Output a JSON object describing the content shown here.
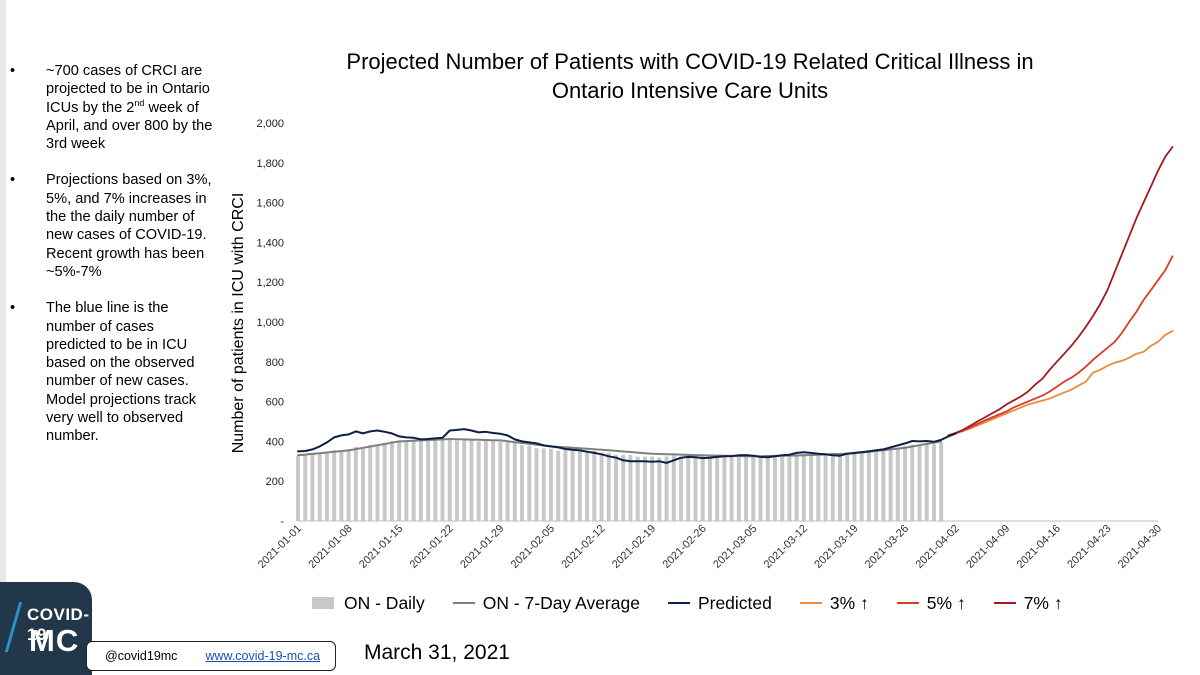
{
  "bullets": [
    {
      "before_sup": "~700 cases of CRCI are projected to be in Ontario ICUs by the 2",
      "sup": "nd",
      "after_sup": " week of April, and over 800 by the 3rd week"
    },
    {
      "text": "Projections based on 3%, 5%, and 7% increases in the the daily number of new cases of COVID-19. Recent growth has been ~5%-7%"
    },
    {
      "text": "The blue line is the number of cases predicted to be in ICU based on the observed number of new cases. Model projections track very well to observed number."
    }
  ],
  "bullet_glyph": "•",
  "chart_data": {
    "type": "bar+line",
    "title_line1": "Projected Number of Patients with COVID-19 Related Critical Illness in",
    "title_line2": "Ontario Intensive Care Units",
    "ylabel": "Number of patients in ICU with CRCI",
    "xlabel": "",
    "ylim": [
      0,
      2000
    ],
    "y_ticks": [
      0,
      200,
      400,
      600,
      800,
      1000,
      1200,
      1400,
      1600,
      1800,
      2000
    ],
    "y_tick_labels": [
      "-",
      "200",
      "400",
      "600",
      "800",
      "1,000",
      "1,200",
      "1,400",
      "1,600",
      "1,800",
      "2,000"
    ],
    "x_start": "2021-01-01",
    "x_end": "2021-04-30",
    "x_tick_labels": [
      "2021-01-01",
      "2021-01-08",
      "2021-01-15",
      "2021-01-22",
      "2021-01-29",
      "2021-02-05",
      "2021-02-12",
      "2021-02-19",
      "2021-02-26",
      "2021-03-05",
      "2021-03-12",
      "2021-03-19",
      "2021-03-26",
      "2021-04-02",
      "2021-04-09",
      "2021-04-16",
      "2021-04-23",
      "2021-04-30"
    ],
    "x_tick_days": [
      0,
      7,
      14,
      21,
      28,
      35,
      42,
      49,
      56,
      63,
      70,
      77,
      84,
      91,
      98,
      105,
      112,
      119
    ],
    "series": [
      {
        "name": "ON - Daily",
        "kind": "bar",
        "color": "#c8c8c8",
        "start_day": 0,
        "anchor_days": [
          0,
          7,
          14,
          21,
          28,
          35,
          42,
          49,
          56,
          63,
          70,
          77,
          84,
          89
        ],
        "anchor_values": [
          330,
          360,
          405,
          410,
          400,
          360,
          345,
          320,
          330,
          325,
          330,
          345,
          375,
          395
        ]
      },
      {
        "name": "ON - 7-Day Average",
        "kind": "line",
        "color": "#7f7f7f",
        "start_day": 0,
        "anchor_days": [
          0,
          7,
          14,
          21,
          28,
          35,
          42,
          49,
          56,
          63,
          70,
          77,
          84,
          89
        ],
        "anchor_values": [
          330,
          355,
          400,
          412,
          405,
          375,
          358,
          338,
          330,
          325,
          330,
          340,
          368,
          400
        ]
      },
      {
        "name": "Predicted",
        "kind": "line",
        "color": "#0f1f47",
        "start_day": 0,
        "values": [
          350,
          352,
          360,
          375,
          395,
          420,
          430,
          435,
          450,
          440,
          450,
          455,
          448,
          440,
          425,
          420,
          418,
          410,
          412,
          415,
          418,
          455,
          458,
          462,
          455,
          445,
          448,
          442,
          438,
          430,
          410,
          400,
          395,
          390,
          380,
          375,
          370,
          362,
          358,
          355,
          348,
          342,
          335,
          325,
          318,
          305,
          300,
          300,
          300,
          298,
          300,
          292,
          305,
          318,
          322,
          320,
          316,
          318,
          322,
          325,
          326,
          330,
          331,
          328,
          322,
          320,
          325,
          330,
          333,
          342,
          345,
          342,
          338,
          335,
          330,
          328,
          338,
          342,
          346,
          350,
          356,
          360,
          370,
          380,
          390,
          402,
          400,
          402,
          398,
          408,
          425,
          440
        ]
      },
      {
        "name": "3% ↑",
        "kind": "line",
        "color": "#ee8b3a",
        "start_day": 90,
        "values": [
          430,
          440,
          452,
          465,
          480,
          495,
          510,
          525,
          540,
          555,
          570,
          585,
          595,
          605,
          615,
          630,
          645,
          660,
          680,
          700,
          745,
          760,
          780,
          795,
          805,
          820,
          840,
          850,
          880,
          900,
          935,
          955
        ]
      },
      {
        "name": "5% ↑",
        "kind": "line",
        "color": "#d93c2a",
        "start_day": 90,
        "values": [
          430,
          440,
          455,
          470,
          488,
          505,
          520,
          535,
          550,
          570,
          585,
          600,
          615,
          630,
          650,
          675,
          700,
          720,
          745,
          775,
          810,
          840,
          870,
          900,
          945,
          1000,
          1050,
          1110,
          1160,
          1210,
          1260,
          1330
        ]
      },
      {
        "name": "7% ↑",
        "kind": "line",
        "color": "#a31a1e",
        "start_day": 90,
        "values": [
          430,
          442,
          458,
          478,
          500,
          520,
          540,
          560,
          585,
          605,
          625,
          650,
          685,
          715,
          760,
          800,
          840,
          880,
          925,
          975,
          1030,
          1090,
          1160,
          1250,
          1340,
          1430,
          1520,
          1600,
          1680,
          1760,
          1830,
          1880
        ]
      }
    ],
    "legend_position": "bottom",
    "grid": false
  },
  "footer": {
    "logo_line1": "COVID-19",
    "logo_line2": "MC",
    "handle": "@covid19mc",
    "url": "www.covid-19-mc.ca",
    "date": "March 31, 2021"
  }
}
